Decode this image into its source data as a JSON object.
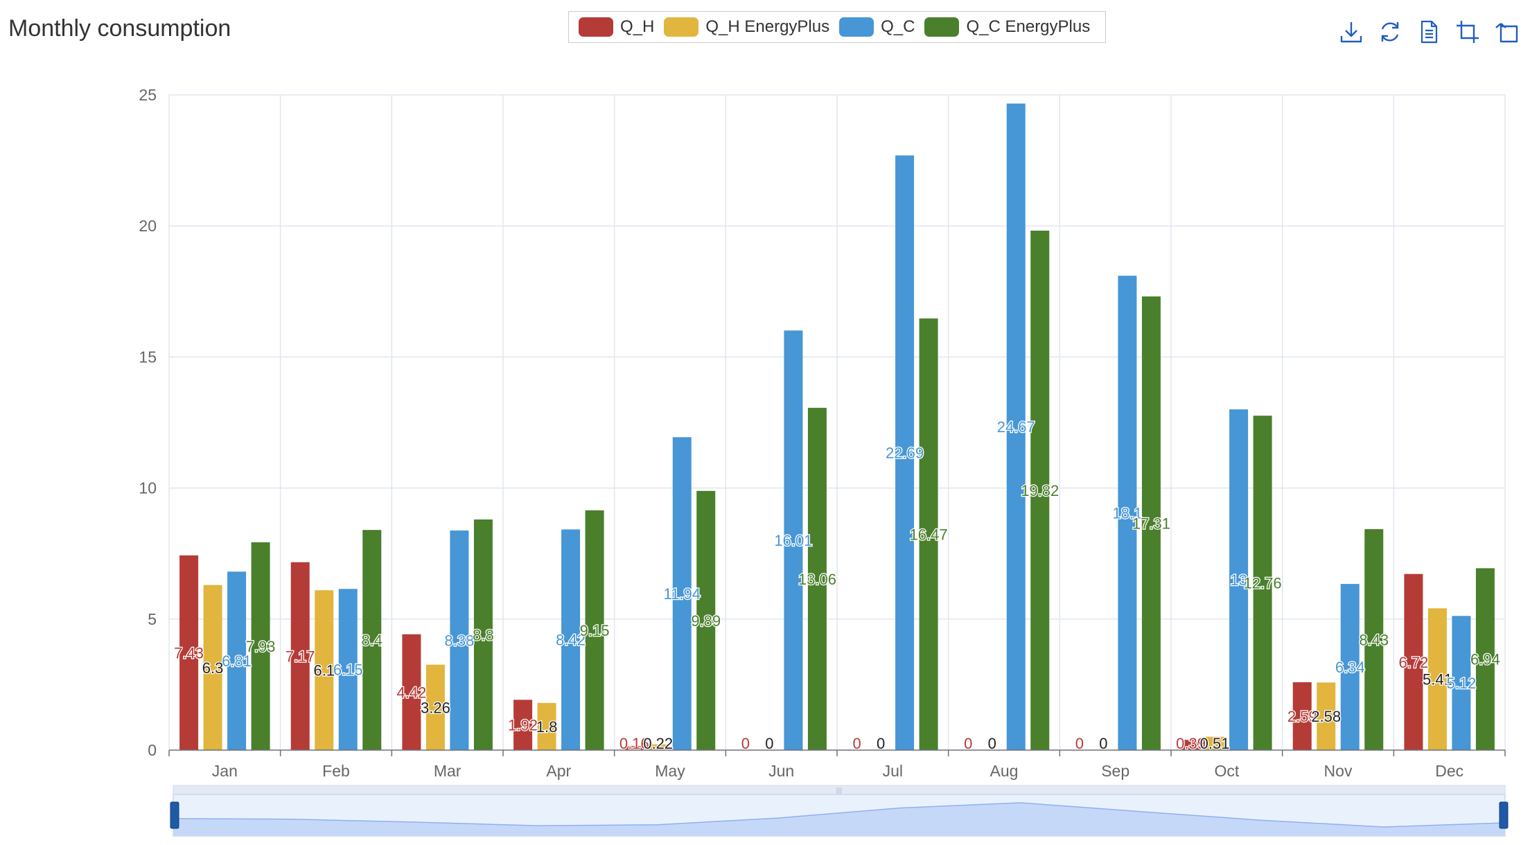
{
  "header": {
    "title": "Monthly consumption"
  },
  "toolbox": [
    {
      "name": "save-as-image",
      "icon": "download-icon"
    },
    {
      "name": "restore",
      "icon": "refresh-icon"
    },
    {
      "name": "data-view",
      "icon": "document-icon"
    },
    {
      "name": "zoom",
      "icon": "crop-icon"
    },
    {
      "name": "zoom-back",
      "icon": "undo-icon"
    }
  ],
  "chart_data": {
    "type": "bar",
    "title": "Monthly consumption",
    "xlabel": "",
    "ylabel": "",
    "ylim": [
      0,
      25
    ],
    "yticks": [
      0,
      5,
      10,
      15,
      20,
      25
    ],
    "grid": true,
    "legend_position": "top-center",
    "categories": [
      "Jan",
      "Feb",
      "Mar",
      "Apr",
      "May",
      "Jun",
      "Jul",
      "Aug",
      "Sep",
      "Oct",
      "Nov",
      "Dec"
    ],
    "series": [
      {
        "name": "Q_H",
        "color": "#b53b37",
        "label_color": "#b53b37",
        "labels": [
          "7.43",
          "7.17",
          "4.42",
          "1.92",
          "0.16",
          "0",
          "0",
          "0",
          "0",
          "0.39",
          "2.59",
          "6.72"
        ],
        "values": [
          7.43,
          7.17,
          4.42,
          1.92,
          0.16,
          0,
          0,
          0,
          0,
          0.39,
          2.59,
          6.72
        ]
      },
      {
        "name": "Q_H EnergyPlus",
        "color": "#e1b53e",
        "label_color": "#222222",
        "labels": [
          "6.3",
          "6.1",
          "3.26",
          "1.8",
          "0.22",
          "0",
          "0",
          "0",
          "0",
          "0.51",
          "2.58",
          "5.41"
        ],
        "values": [
          6.3,
          6.1,
          3.26,
          1.8,
          0.22,
          0,
          0,
          0,
          0,
          0.51,
          2.58,
          5.41
        ]
      },
      {
        "name": "Q_C",
        "color": "#4796d6",
        "label_color": "#4796d6",
        "labels": [
          "6.81",
          "6.15",
          "8.38",
          "8.42",
          "11.94",
          "16.01",
          "22.69",
          "24.67",
          "18.1",
          "13",
          "6.34",
          "5.12"
        ],
        "values": [
          6.81,
          6.15,
          8.38,
          8.42,
          11.94,
          16.01,
          22.69,
          24.67,
          18.1,
          13.0,
          6.34,
          5.12
        ]
      },
      {
        "name": "Q_C EnergyPlus",
        "color": "#4a7f2b",
        "label_color": "#4a7f2b",
        "labels": [
          "7.93",
          "8.4",
          "8.8",
          "9.15",
          "9.89",
          "13.06",
          "16.47",
          "19.82",
          "17.31",
          "12.76",
          "8.43",
          "6.94"
        ],
        "values": [
          7.93,
          8.4,
          8.8,
          9.15,
          9.89,
          13.06,
          16.47,
          19.82,
          17.31,
          12.76,
          8.43,
          6.94
        ]
      }
    ],
    "datazoom": {
      "start_percent": 0,
      "end_percent": 100
    }
  }
}
